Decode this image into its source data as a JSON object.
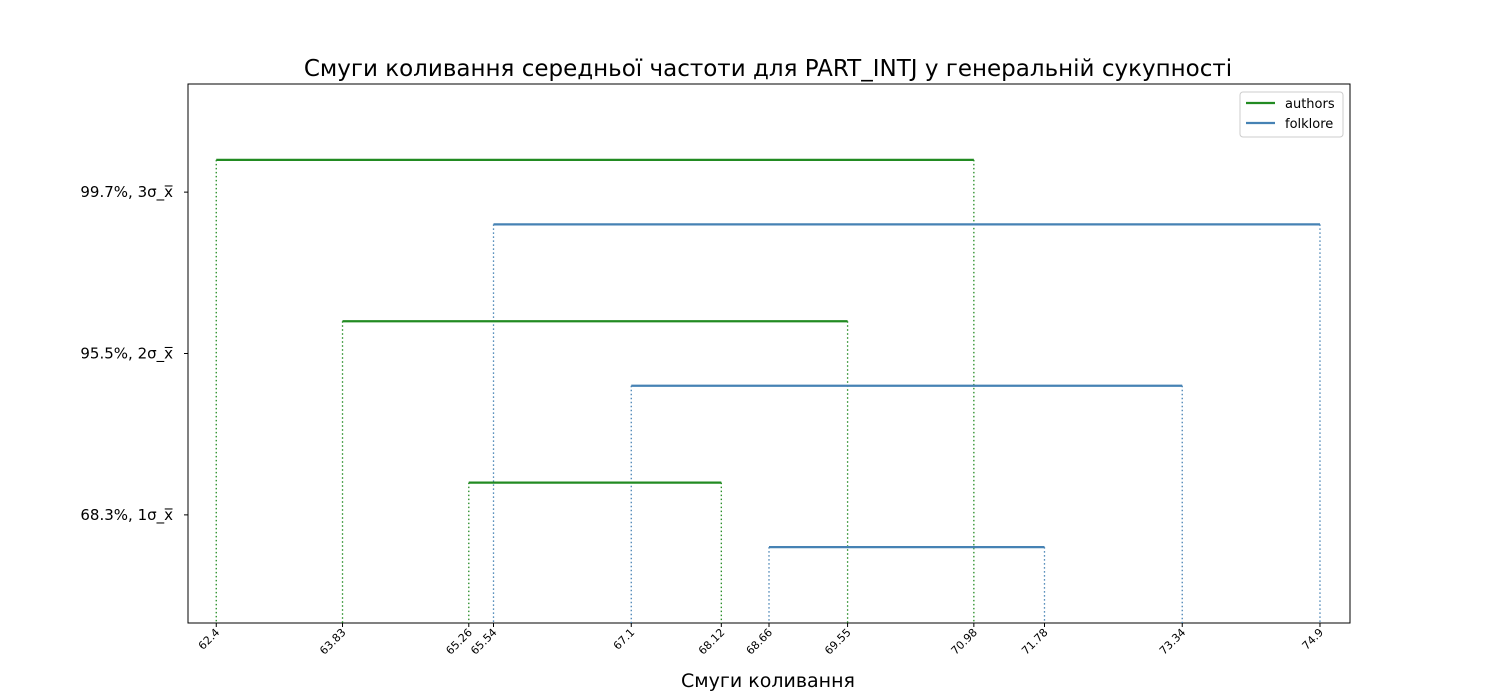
{
  "chart_data": {
    "type": "line",
    "title": "Смуги коливання середньої частоти для PART_INTJ у генеральній сукупності",
    "xlabel": "Смуги коливання",
    "ylabel": "",
    "y_tick_labels": [
      "68.3%,  1σ_x̅",
      "95.5%,  2σ_x̅",
      "99.7%,  3σ_x̅"
    ],
    "x_ticks": [
      62.4,
      63.83,
      65.26,
      65.54,
      67.1,
      68.12,
      68.66,
      69.55,
      70.98,
      71.78,
      73.34,
      74.9
    ],
    "x_tick_labels": [
      "62.4",
      "63.83",
      "65.26",
      "65.54",
      "67.1",
      "68.12",
      "68.66",
      "69.55",
      "70.98",
      "71.78",
      "73.34",
      "74.9"
    ],
    "xlim": [
      62.08,
      75.24
    ],
    "ylim": [
      0.33,
      3.67
    ],
    "legend_position": "top-right",
    "grid": false,
    "series": [
      {
        "name": "authors",
        "color": "#228B22",
        "intervals": [
          {
            "level": 1,
            "y": 1.2,
            "x_start": 65.26,
            "x_end": 68.12
          },
          {
            "level": 2,
            "y": 2.2,
            "x_start": 63.83,
            "x_end": 69.55
          },
          {
            "level": 3,
            "y": 3.2,
            "x_start": 62.4,
            "x_end": 70.98
          }
        ]
      },
      {
        "name": "folklore",
        "color": "#4682B4",
        "intervals": [
          {
            "level": 1,
            "y": 0.8,
            "x_start": 68.66,
            "x_end": 71.78
          },
          {
            "level": 2,
            "y": 1.8,
            "x_start": 67.1,
            "x_end": 73.34
          },
          {
            "level": 3,
            "y": 2.8,
            "x_start": 65.54,
            "x_end": 74.9
          }
        ]
      }
    ]
  }
}
